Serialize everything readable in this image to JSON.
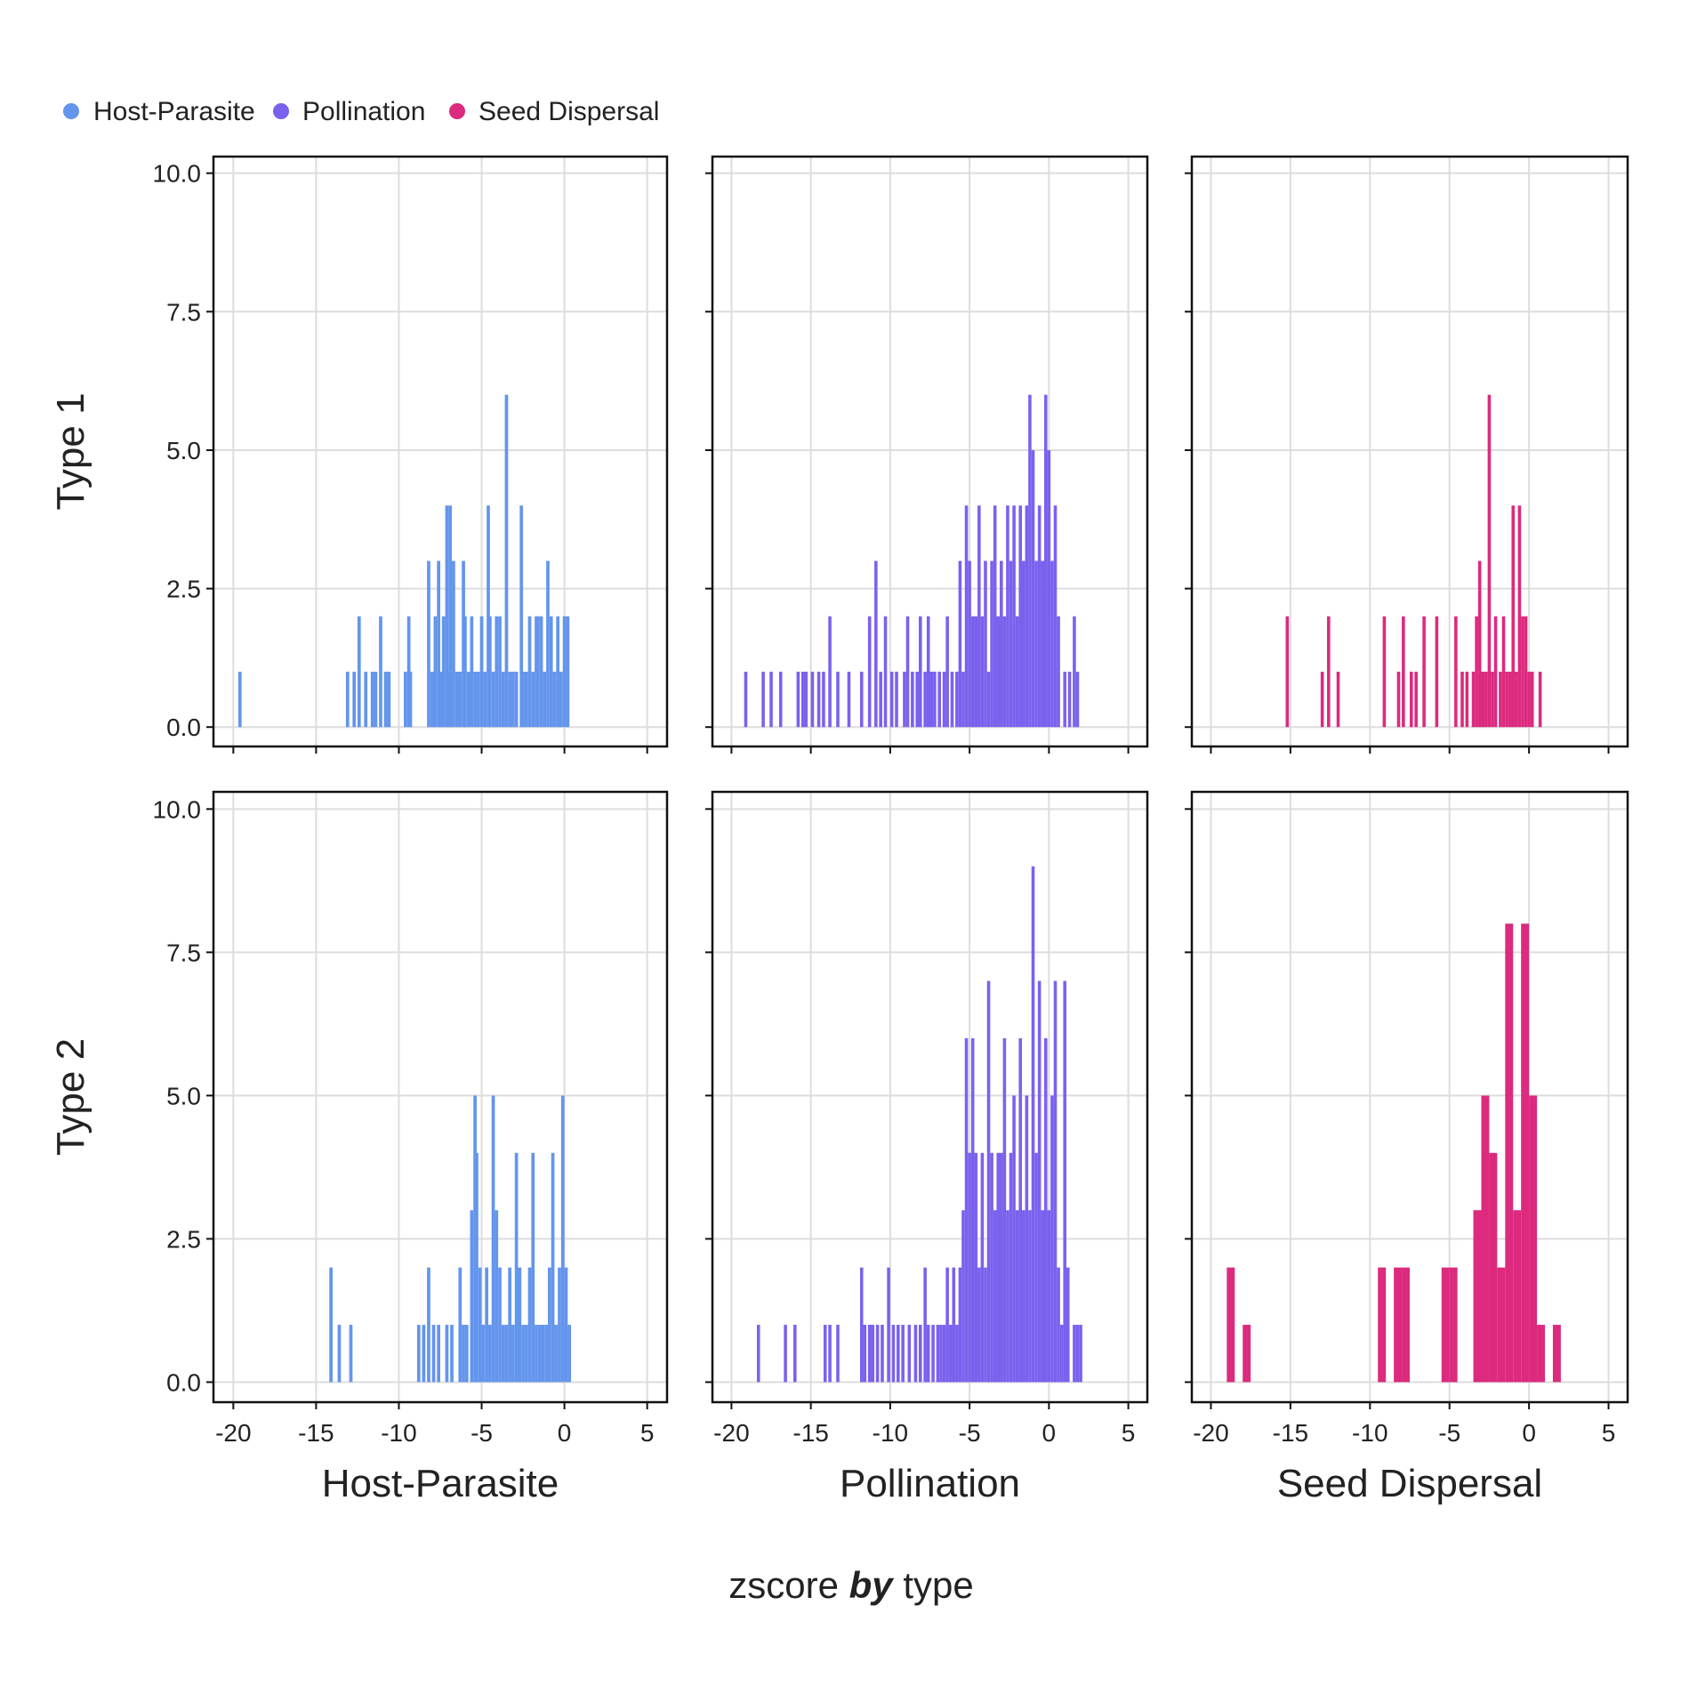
{
  "chart_data": {
    "type": "histogram",
    "layout": "facet grid, 2 rows x 3 columns",
    "x_title_parts": {
      "a": "zscore ",
      "b": "by",
      "c": " type"
    },
    "legend": {
      "placement": "top-left",
      "items": [
        {
          "label": "Host-Parasite",
          "color": "#6495ed"
        },
        {
          "label": "Pollination",
          "color": "#7b61ee"
        },
        {
          "label": "Seed Dispersal",
          "color": "#dc2a7e"
        }
      ]
    },
    "xlim": [
      -21.2,
      6.2
    ],
    "ylim": [
      -0.35,
      10.3
    ],
    "x_ticks": [
      -20,
      -15,
      -10,
      -5,
      0,
      5
    ],
    "x_tick_labels": [
      "-20",
      "-15",
      "-10",
      "-5",
      "0",
      "5"
    ],
    "y_ticks": [
      0,
      2.5,
      5,
      7.5,
      10
    ],
    "y_tick_labels": [
      "0.0",
      "2.5",
      "5.0",
      "7.5",
      "10.0"
    ],
    "grid": true,
    "rows": [
      "Type 1",
      "Type 2"
    ],
    "columns": [
      {
        "label": "Host-Parasite",
        "color": "#6495ed"
      },
      {
        "label": "Pollination",
        "color": "#7b61ee"
      },
      {
        "label": "Seed Dispersal",
        "color": "#dc2a7e"
      }
    ],
    "panels": [
      {
        "row": "Type 1",
        "column": "Host-Parasite",
        "bin_width": 0.2,
        "bins": [
          [
            -19.6,
            1
          ],
          [
            -13.1,
            1
          ],
          [
            -12.7,
            1
          ],
          [
            -12.4,
            2
          ],
          [
            -12.0,
            1
          ],
          [
            -11.6,
            1
          ],
          [
            -11.4,
            1
          ],
          [
            -11.1,
            2
          ],
          [
            -10.8,
            1
          ],
          [
            -10.6,
            1
          ],
          [
            -9.6,
            1
          ],
          [
            -9.4,
            2
          ],
          [
            -9.3,
            1
          ],
          [
            -8.2,
            3
          ],
          [
            -8.0,
            1
          ],
          [
            -7.9,
            1
          ],
          [
            -7.8,
            2
          ],
          [
            -7.6,
            3
          ],
          [
            -7.4,
            1
          ],
          [
            -7.3,
            2
          ],
          [
            -7.1,
            4
          ],
          [
            -7.0,
            1
          ],
          [
            -6.9,
            4
          ],
          [
            -6.7,
            3
          ],
          [
            -6.5,
            1
          ],
          [
            -6.3,
            1
          ],
          [
            -6.1,
            3
          ],
          [
            -6.0,
            2
          ],
          [
            -5.8,
            1
          ],
          [
            -5.6,
            2
          ],
          [
            -5.4,
            1
          ],
          [
            -5.2,
            1
          ],
          [
            -5.0,
            2
          ],
          [
            -4.8,
            1
          ],
          [
            -4.6,
            4
          ],
          [
            -4.5,
            2
          ],
          [
            -4.3,
            1
          ],
          [
            -4.1,
            2
          ],
          [
            -3.9,
            2
          ],
          [
            -3.7,
            1
          ],
          [
            -3.5,
            6
          ],
          [
            -3.3,
            1
          ],
          [
            -3.1,
            1
          ],
          [
            -2.9,
            1
          ],
          [
            -2.6,
            4
          ],
          [
            -2.5,
            1
          ],
          [
            -2.3,
            1
          ],
          [
            -2.1,
            2
          ],
          [
            -1.9,
            1
          ],
          [
            -1.7,
            2
          ],
          [
            -1.6,
            2
          ],
          [
            -1.4,
            2
          ],
          [
            -1.2,
            1
          ],
          [
            -1.0,
            3
          ],
          [
            -0.8,
            2
          ],
          [
            -0.6,
            1
          ],
          [
            -0.4,
            2
          ],
          [
            -0.2,
            1
          ],
          [
            0.0,
            2
          ],
          [
            0.2,
            2
          ]
        ]
      },
      {
        "row": "Type 1",
        "column": "Pollination",
        "bin_width": 0.2,
        "bins": [
          [
            -19.1,
            1
          ],
          [
            -18.0,
            1
          ],
          [
            -17.5,
            1
          ],
          [
            -16.9,
            1
          ],
          [
            -15.8,
            1
          ],
          [
            -15.5,
            1
          ],
          [
            -15.3,
            1
          ],
          [
            -14.9,
            1
          ],
          [
            -14.5,
            1
          ],
          [
            -14.2,
            1
          ],
          [
            -13.8,
            2
          ],
          [
            -13.3,
            1
          ],
          [
            -12.6,
            1
          ],
          [
            -11.8,
            1
          ],
          [
            -11.3,
            2
          ],
          [
            -10.9,
            3
          ],
          [
            -10.6,
            1
          ],
          [
            -10.3,
            2
          ],
          [
            -9.9,
            1
          ],
          [
            -9.6,
            1
          ],
          [
            -9.1,
            1
          ],
          [
            -8.9,
            2
          ],
          [
            -8.6,
            1
          ],
          [
            -8.3,
            1
          ],
          [
            -8.1,
            2
          ],
          [
            -7.8,
            1
          ],
          [
            -7.6,
            2
          ],
          [
            -7.4,
            1
          ],
          [
            -7.2,
            1
          ],
          [
            -6.9,
            1
          ],
          [
            -6.6,
            1
          ],
          [
            -6.4,
            2
          ],
          [
            -6.1,
            1
          ],
          [
            -5.8,
            1
          ],
          [
            -5.6,
            3
          ],
          [
            -5.4,
            1
          ],
          [
            -5.2,
            4
          ],
          [
            -5.0,
            3
          ],
          [
            -4.8,
            2
          ],
          [
            -4.6,
            2
          ],
          [
            -4.4,
            4
          ],
          [
            -4.2,
            2
          ],
          [
            -4.0,
            3
          ],
          [
            -3.8,
            1
          ],
          [
            -3.6,
            3
          ],
          [
            -3.4,
            4
          ],
          [
            -3.2,
            2
          ],
          [
            -3.0,
            3
          ],
          [
            -2.8,
            2
          ],
          [
            -2.6,
            4
          ],
          [
            -2.4,
            3
          ],
          [
            -2.2,
            4
          ],
          [
            -2.0,
            2
          ],
          [
            -1.8,
            4
          ],
          [
            -1.6,
            3
          ],
          [
            -1.4,
            4
          ],
          [
            -1.2,
            6
          ],
          [
            -1.0,
            5
          ],
          [
            -0.8,
            3
          ],
          [
            -0.6,
            4
          ],
          [
            -0.4,
            3
          ],
          [
            -0.2,
            6
          ],
          [
            0.0,
            5
          ],
          [
            0.2,
            3
          ],
          [
            0.4,
            4
          ],
          [
            0.6,
            2
          ],
          [
            1.0,
            1
          ],
          [
            1.3,
            1
          ],
          [
            1.6,
            2
          ],
          [
            1.8,
            1
          ]
        ]
      },
      {
        "row": "Type 1",
        "column": "Seed Dispersal",
        "bin_width": 0.2,
        "bins": [
          [
            -15.2,
            2
          ],
          [
            -13.0,
            1
          ],
          [
            -12.6,
            2
          ],
          [
            -12.0,
            1
          ],
          [
            -9.1,
            2
          ],
          [
            -8.2,
            1
          ],
          [
            -7.9,
            2
          ],
          [
            -7.4,
            1
          ],
          [
            -7.1,
            1
          ],
          [
            -6.6,
            2
          ],
          [
            -5.8,
            2
          ],
          [
            -4.6,
            2
          ],
          [
            -4.2,
            1
          ],
          [
            -3.9,
            1
          ],
          [
            -3.5,
            1
          ],
          [
            -3.3,
            2
          ],
          [
            -3.1,
            3
          ],
          [
            -2.9,
            1
          ],
          [
            -2.7,
            1
          ],
          [
            -2.5,
            6
          ],
          [
            -2.3,
            1
          ],
          [
            -2.1,
            2
          ],
          [
            -1.8,
            1
          ],
          [
            -1.6,
            2
          ],
          [
            -1.4,
            1
          ],
          [
            -1.2,
            1
          ],
          [
            -1.0,
            4
          ],
          [
            -0.8,
            1
          ],
          [
            -0.6,
            4
          ],
          [
            -0.4,
            2
          ],
          [
            -0.2,
            2
          ],
          [
            0.0,
            1
          ],
          [
            0.2,
            1
          ],
          [
            0.7,
            1
          ]
        ]
      },
      {
        "row": "Type 2",
        "column": "Host-Parasite",
        "bin_width": 0.2,
        "bins": [
          [
            -14.1,
            2
          ],
          [
            -13.6,
            1
          ],
          [
            -12.9,
            1
          ],
          [
            -8.8,
            1
          ],
          [
            -8.5,
            1
          ],
          [
            -8.2,
            2
          ],
          [
            -7.9,
            1
          ],
          [
            -7.6,
            1
          ],
          [
            -7.1,
            1
          ],
          [
            -6.8,
            1
          ],
          [
            -6.3,
            2
          ],
          [
            -6.1,
            1
          ],
          [
            -5.9,
            1
          ],
          [
            -5.6,
            3
          ],
          [
            -5.4,
            5
          ],
          [
            -5.3,
            4
          ],
          [
            -5.1,
            2
          ],
          [
            -4.9,
            1
          ],
          [
            -4.7,
            2
          ],
          [
            -4.5,
            1
          ],
          [
            -4.3,
            5
          ],
          [
            -4.1,
            3
          ],
          [
            -3.9,
            2
          ],
          [
            -3.7,
            1
          ],
          [
            -3.5,
            1
          ],
          [
            -3.3,
            2
          ],
          [
            -3.1,
            1
          ],
          [
            -2.9,
            4
          ],
          [
            -2.7,
            2
          ],
          [
            -2.5,
            1
          ],
          [
            -2.3,
            1
          ],
          [
            -2.1,
            2
          ],
          [
            -1.9,
            4
          ],
          [
            -1.7,
            1
          ],
          [
            -1.5,
            1
          ],
          [
            -1.3,
            1
          ],
          [
            -1.1,
            1
          ],
          [
            -0.9,
            2
          ],
          [
            -0.7,
            4
          ],
          [
            -0.5,
            1
          ],
          [
            -0.3,
            2
          ],
          [
            -0.1,
            5
          ],
          [
            0.1,
            2
          ],
          [
            0.3,
            1
          ]
        ]
      },
      {
        "row": "Type 2",
        "column": "Pollination",
        "bin_width": 0.2,
        "bins": [
          [
            -18.3,
            1
          ],
          [
            -16.6,
            1
          ],
          [
            -16.0,
            1
          ],
          [
            -14.1,
            1
          ],
          [
            -13.8,
            1
          ],
          [
            -13.3,
            1
          ],
          [
            -11.8,
            2
          ],
          [
            -11.6,
            1
          ],
          [
            -11.3,
            1
          ],
          [
            -11.1,
            1
          ],
          [
            -10.8,
            1
          ],
          [
            -10.5,
            1
          ],
          [
            -10.1,
            2
          ],
          [
            -9.8,
            1
          ],
          [
            -9.5,
            1
          ],
          [
            -9.2,
            1
          ],
          [
            -8.8,
            1
          ],
          [
            -8.4,
            1
          ],
          [
            -8.1,
            1
          ],
          [
            -7.8,
            2
          ],
          [
            -7.6,
            1
          ],
          [
            -7.3,
            1
          ],
          [
            -7.0,
            1
          ],
          [
            -6.8,
            1
          ],
          [
            -6.6,
            1
          ],
          [
            -6.4,
            2
          ],
          [
            -6.2,
            1
          ],
          [
            -6.0,
            2
          ],
          [
            -5.8,
            1
          ],
          [
            -5.6,
            2
          ],
          [
            -5.4,
            3
          ],
          [
            -5.2,
            6
          ],
          [
            -5.0,
            4
          ],
          [
            -4.8,
            6
          ],
          [
            -4.6,
            4
          ],
          [
            -4.4,
            2
          ],
          [
            -4.2,
            4
          ],
          [
            -4.0,
            2
          ],
          [
            -3.8,
            7
          ],
          [
            -3.6,
            4
          ],
          [
            -3.4,
            3
          ],
          [
            -3.2,
            4
          ],
          [
            -3.0,
            4
          ],
          [
            -2.8,
            6
          ],
          [
            -2.6,
            3
          ],
          [
            -2.4,
            4
          ],
          [
            -2.2,
            5
          ],
          [
            -2.0,
            3
          ],
          [
            -1.8,
            6
          ],
          [
            -1.6,
            3
          ],
          [
            -1.4,
            5
          ],
          [
            -1.2,
            3
          ],
          [
            -1.0,
            9
          ],
          [
            -0.8,
            4
          ],
          [
            -0.6,
            7
          ],
          [
            -0.4,
            3
          ],
          [
            -0.2,
            6
          ],
          [
            0.0,
            3
          ],
          [
            0.2,
            5
          ],
          [
            0.4,
            7
          ],
          [
            0.6,
            2
          ],
          [
            0.8,
            1
          ],
          [
            1.0,
            7
          ],
          [
            1.2,
            2
          ],
          [
            1.6,
            1
          ],
          [
            1.8,
            1
          ],
          [
            2.0,
            1
          ]
        ]
      },
      {
        "row": "Type 2",
        "column": "Seed Dispersal",
        "bin_width": 0.5,
        "bins": [
          [
            -18.75,
            2
          ],
          [
            -17.75,
            1
          ],
          [
            -9.25,
            2
          ],
          [
            -8.25,
            2
          ],
          [
            -7.75,
            2
          ],
          [
            -5.25,
            2
          ],
          [
            -4.75,
            2
          ],
          [
            -3.25,
            3
          ],
          [
            -2.75,
            5
          ],
          [
            -2.25,
            4
          ],
          [
            -1.75,
            2
          ],
          [
            -1.25,
            8
          ],
          [
            -0.75,
            3
          ],
          [
            -0.25,
            8
          ],
          [
            0.25,
            5
          ],
          [
            0.75,
            1
          ],
          [
            1.75,
            1
          ]
        ]
      }
    ]
  }
}
